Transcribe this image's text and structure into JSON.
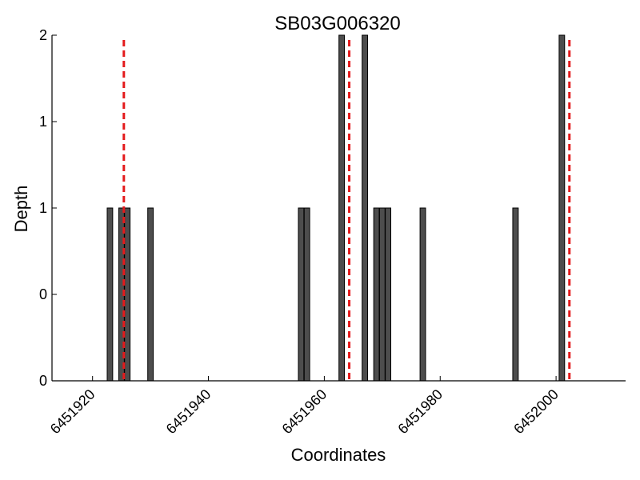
{
  "chart_data": {
    "type": "bar",
    "title": "SB03G006320",
    "xlabel": "Coordinates",
    "ylabel": "Depth",
    "xlim": [
      1913,
      2012
    ],
    "ylim": [
      0,
      2
    ],
    "x_ticks": [
      1920,
      1940,
      1960,
      1980,
      2000
    ],
    "x_tick_labels": [
      "6451920",
      "6451940",
      "6451960",
      "6451980",
      "6452000"
    ],
    "y_ticks": [
      0,
      0.5,
      1,
      1.5,
      2
    ],
    "y_tick_labels": [
      "0",
      "0",
      "1",
      "1",
      "2"
    ],
    "bar_color": "#4d4d4d",
    "marker_color": "#e31a1c",
    "bars": [
      {
        "x": 1923,
        "depth": 1
      },
      {
        "x": 1925,
        "depth": 1
      },
      {
        "x": 1926,
        "depth": 1
      },
      {
        "x": 1930,
        "depth": 1
      },
      {
        "x": 1956,
        "depth": 1
      },
      {
        "x": 1957,
        "depth": 1
      },
      {
        "x": 1963,
        "depth": 2
      },
      {
        "x": 1967,
        "depth": 2
      },
      {
        "x": 1969,
        "depth": 1
      },
      {
        "x": 1970,
        "depth": 1
      },
      {
        "x": 1971,
        "depth": 1
      },
      {
        "x": 1977,
        "depth": 1
      },
      {
        "x": 1993,
        "depth": 1
      },
      {
        "x": 2001,
        "depth": 2
      }
    ],
    "markers": [
      1925.4,
      1964.3,
      2002.3
    ],
    "grid": false
  }
}
